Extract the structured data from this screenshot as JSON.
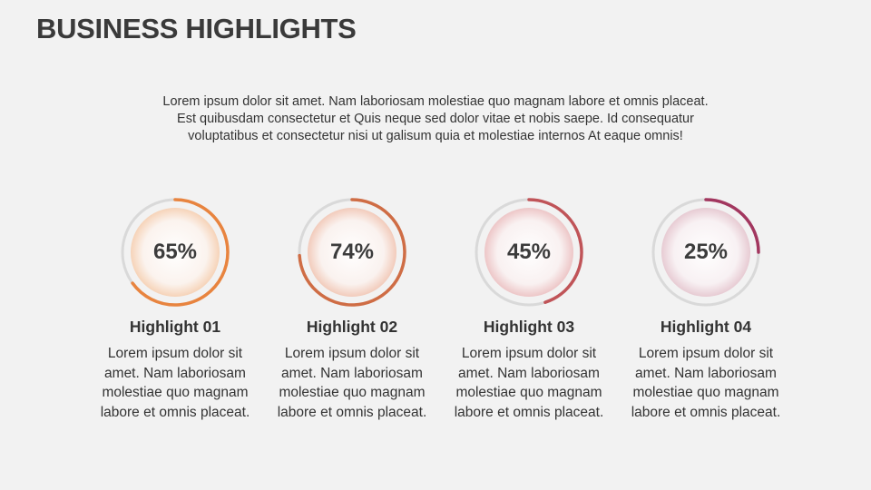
{
  "title": "BUSINESS HIGHLIGHTS",
  "intro": {
    "lines": [
      "Lorem ipsum dolor sit amet. Nam laboriosam molestiae quo magnam labore et omnis placeat.",
      "Est quibusdam consectetur et Quis neque sed dolor vitae et nobis saepe. Id consequatur",
      "voluptatibus et consectetur nisi ut galisum quia et molestiae internos At eaque omnis!"
    ]
  },
  "highlights": [
    {
      "value": 65,
      "label": "65%",
      "title": "Highlight 01",
      "color": "#e8843f",
      "inner_color": "#f6d3b8",
      "text": [
        "Lorem ipsum dolor sit",
        "amet. Nam laboriosam",
        "molestiae quo magnam",
        "labore et omnis placeat."
      ]
    },
    {
      "value": 74,
      "label": "74%",
      "title": "Highlight 02",
      "color": "#cf6d45",
      "inner_color": "#f2cbbb",
      "text": [
        "Lorem ipsum dolor sit",
        "amet. Nam laboriosam",
        "molestiae quo magnam",
        "labore et omnis placeat."
      ]
    },
    {
      "value": 45,
      "label": "45%",
      "title": "Highlight 03",
      "color": "#c05458",
      "inner_color": "#edc6c7",
      "text": [
        "Lorem ipsum dolor sit",
        "amet. Nam laboriosam",
        "molestiae quo magnam",
        "labore et omnis placeat."
      ]
    },
    {
      "value": 25,
      "label": "25%",
      "title": "Highlight 04",
      "color": "#a2375f",
      "inner_color": "#e7cbd3",
      "text": [
        "Lorem ipsum dolor sit",
        "amet. Nam laboriosam",
        "molestiae quo magnam",
        "labore et omnis placeat."
      ]
    }
  ]
}
